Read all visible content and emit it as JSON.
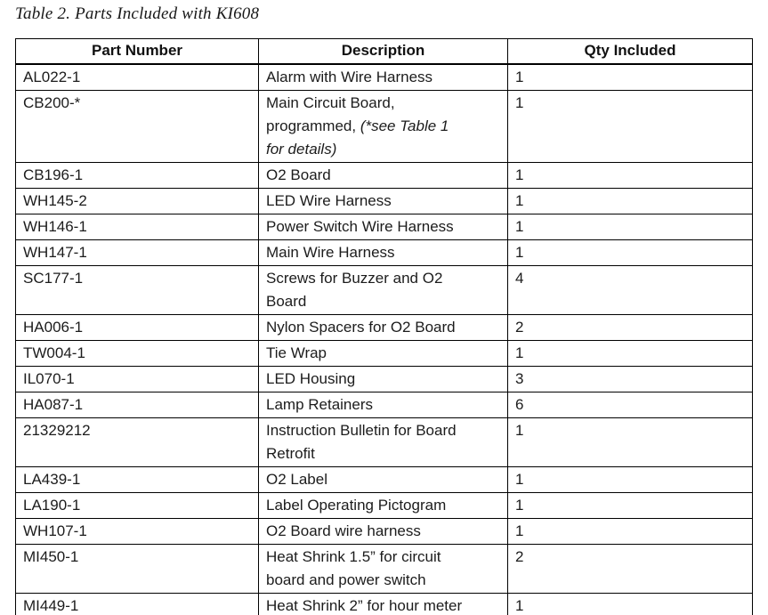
{
  "caption": "Table 2. Parts Included with KI608",
  "colors": {
    "text": "#1c1c1c",
    "border": "#000000",
    "background": "#ffffff"
  },
  "table": {
    "headers": {
      "part": "Part Number",
      "desc": "Description",
      "qty": "Qty Included"
    },
    "rows": [
      {
        "part": "AL022-1",
        "desc": "Alarm with Wire Harness",
        "qty": "1"
      },
      {
        "part": "CB200-*",
        "desc": "Main Circuit Board,\nprogrammed, ",
        "desc_italic": "(*see Table 1\nfor details)",
        "qty": "1"
      },
      {
        "part": "CB196-1",
        "desc": "O2 Board",
        "qty": "1"
      },
      {
        "part": "WH145-2",
        "desc": "LED Wire Harness",
        "qty": "1"
      },
      {
        "part": "WH146-1",
        "desc": "Power Switch Wire Harness",
        "qty": "1"
      },
      {
        "part": "WH147-1",
        "desc": "Main Wire Harness",
        "qty": "1"
      },
      {
        "part": "SC177-1",
        "desc": "Screws for Buzzer and O2\nBoard",
        "qty": "4"
      },
      {
        "part": "HA006-1",
        "desc": "Nylon Spacers for O2 Board",
        "qty": "2"
      },
      {
        "part": "TW004-1",
        "desc": "Tie Wrap",
        "qty": "1"
      },
      {
        "part": "IL070-1",
        "desc": "LED Housing",
        "qty": "3"
      },
      {
        "part": "HA087-1",
        "desc": "Lamp Retainers",
        "qty": "6"
      },
      {
        "part": "21329212",
        "desc": "Instruction Bulletin for Board\nRetrofit",
        "qty": "1"
      },
      {
        "part": "LA439-1",
        "desc": "O2 Label",
        "qty": "1"
      },
      {
        "part": "LA190-1",
        "desc": "Label Operating Pictogram",
        "qty": "1"
      },
      {
        "part": "WH107-1",
        "desc": "O2 Board wire harness",
        "qty": "1"
      },
      {
        "part": "MI450-1",
        "desc": "Heat Shrink 1.5” for circuit\nboard and power switch",
        "qty": "2"
      },
      {
        "part": "MI449-1",
        "desc": "Heat Shrink 2” for hour meter",
        "qty": "1"
      }
    ]
  }
}
